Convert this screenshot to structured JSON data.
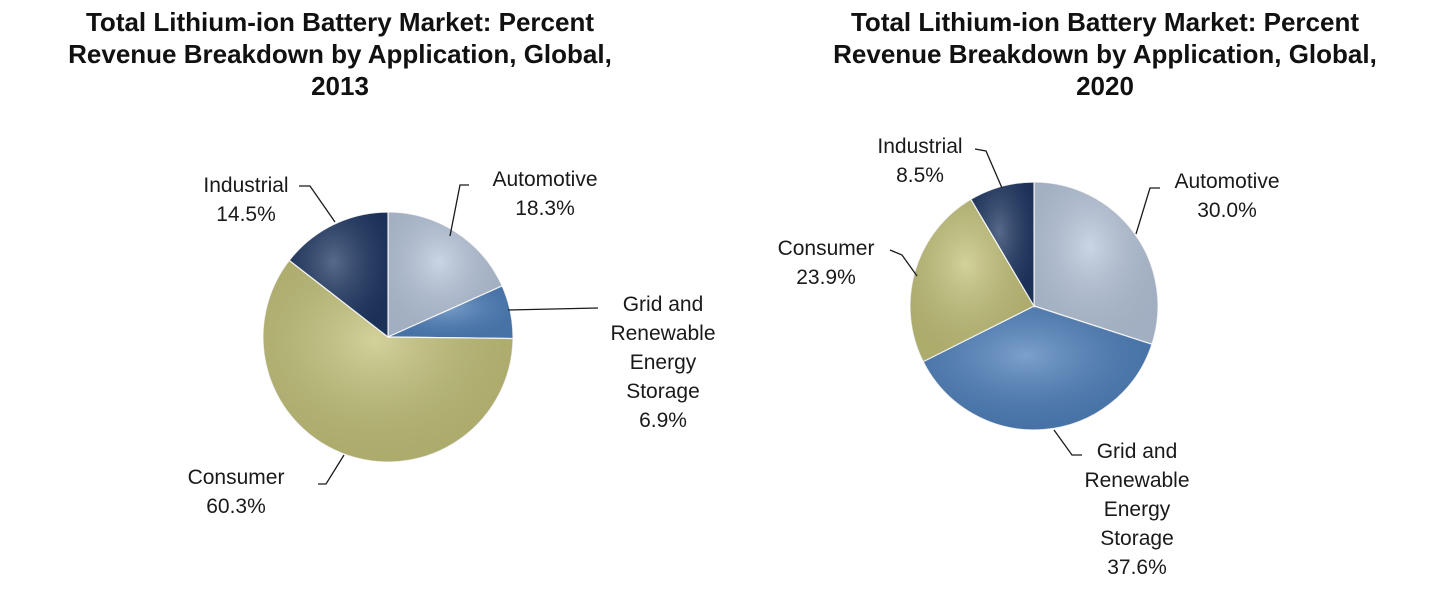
{
  "chart_data": [
    {
      "type": "pie",
      "title_lines": [
        "Total Lithium-ion Battery Market: Percent",
        "Revenue Breakdown by Application, Global,",
        "2013"
      ],
      "slices": [
        {
          "name": "Automotive",
          "value": 18.3,
          "value_label": "18.3%",
          "name_lines": [
            "Automotive"
          ],
          "color": "#b8c7dc"
        },
        {
          "name": "Grid and Renewable Energy Storage",
          "value": 6.9,
          "value_label": "6.9%",
          "name_lines": [
            "Grid and",
            "Renewable",
            "Energy",
            "Storage"
          ],
          "color": "#4f81bd"
        },
        {
          "name": "Consumer",
          "value": 60.3,
          "value_label": "60.3%",
          "name_lines": [
            "Consumer"
          ],
          "color": "#c4c37a"
        },
        {
          "name": "Industrial",
          "value": 14.5,
          "value_label": "14.5%",
          "name_lines": [
            "Industrial"
          ],
          "color": "#1f3864"
        }
      ]
    },
    {
      "type": "pie",
      "title_lines": [
        "Total Lithium-ion Battery Market: Percent",
        "Revenue Breakdown by Application, Global,",
        "2020"
      ],
      "slices": [
        {
          "name": "Automotive",
          "value": 30.0,
          "value_label": "30.0%",
          "name_lines": [
            "Automotive"
          ],
          "color": "#b8c7dc"
        },
        {
          "name": "Grid and Renewable Energy Storage",
          "value": 37.6,
          "value_label": "37.6%",
          "name_lines": [
            "Grid and",
            "Renewable",
            "Energy",
            "Storage"
          ],
          "color": "#4f81bd"
        },
        {
          "name": "Consumer",
          "value": 23.9,
          "value_label": "23.9%",
          "name_lines": [
            "Consumer"
          ],
          "color": "#c4c37a"
        },
        {
          "name": "Industrial",
          "value": 8.5,
          "value_label": "8.5%",
          "name_lines": [
            "Industrial"
          ],
          "color": "#1f3864"
        }
      ]
    }
  ]
}
